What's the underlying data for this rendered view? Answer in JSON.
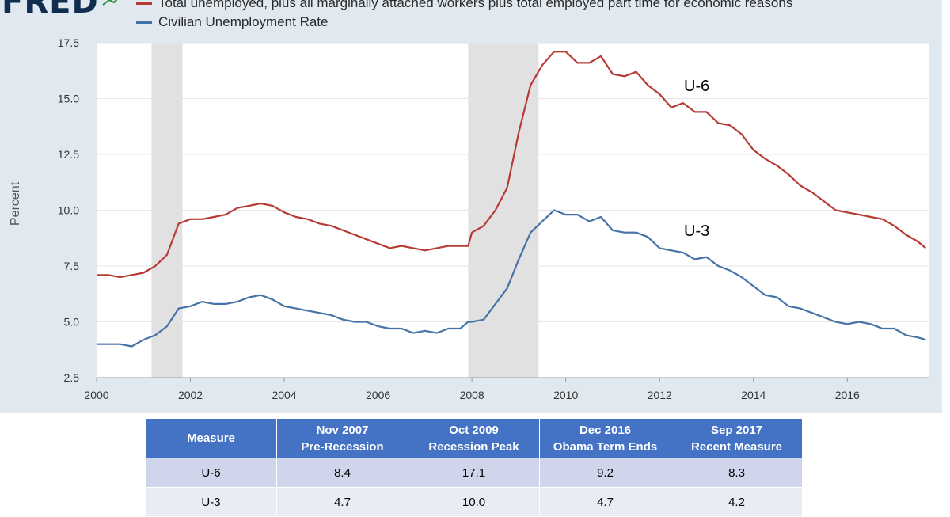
{
  "header": {
    "logo_text": "FRED",
    "series_title_partial": "Total unemployed, plus all marginally attached workers plus total employed part time for economic reasons"
  },
  "chart_data": {
    "type": "line",
    "title": "",
    "xlabel": "",
    "ylabel": "Percent",
    "xlim": [
      2000,
      2017.75
    ],
    "ylim": [
      2.5,
      17.5
    ],
    "y_ticks": [
      "2.5",
      "5.0",
      "7.5",
      "10.0",
      "12.5",
      "15.0",
      "17.5"
    ],
    "x_ticks": [
      "2000",
      "2002",
      "2004",
      "2006",
      "2008",
      "2010",
      "2012",
      "2014",
      "2016"
    ],
    "grid": true,
    "recessions": [
      [
        2001.17,
        2001.83
      ],
      [
        2007.92,
        2009.42
      ]
    ],
    "series": [
      {
        "name": "Total unemployed, plus all marginally attached workers plus total employed part time for economic reasons",
        "label": "U-6",
        "color": "#b73b33",
        "x": [
          2000.0,
          2000.25,
          2000.5,
          2000.75,
          2001.0,
          2001.25,
          2001.5,
          2001.75,
          2002.0,
          2002.25,
          2002.5,
          2002.75,
          2003.0,
          2003.25,
          2003.5,
          2003.75,
          2004.0,
          2004.25,
          2004.5,
          2004.75,
          2005.0,
          2005.25,
          2005.5,
          2005.75,
          2006.0,
          2006.25,
          2006.5,
          2006.75,
          2007.0,
          2007.25,
          2007.5,
          2007.75,
          2007.92,
          2008.0,
          2008.25,
          2008.5,
          2008.75,
          2009.0,
          2009.25,
          2009.5,
          2009.75,
          2010.0,
          2010.25,
          2010.5,
          2010.75,
          2011.0,
          2011.25,
          2011.5,
          2011.75,
          2012.0,
          2012.25,
          2012.5,
          2012.75,
          2013.0,
          2013.25,
          2013.5,
          2013.75,
          2014.0,
          2014.25,
          2014.5,
          2014.75,
          2015.0,
          2015.25,
          2015.5,
          2015.75,
          2016.0,
          2016.25,
          2016.5,
          2016.75,
          2017.0,
          2017.25,
          2017.5,
          2017.67
        ],
        "y": [
          7.1,
          7.1,
          7.0,
          7.1,
          7.2,
          7.5,
          8.0,
          9.4,
          9.6,
          9.6,
          9.7,
          9.8,
          10.1,
          10.2,
          10.3,
          10.2,
          9.9,
          9.7,
          9.6,
          9.4,
          9.3,
          9.1,
          8.9,
          8.7,
          8.5,
          8.3,
          8.4,
          8.3,
          8.2,
          8.3,
          8.4,
          8.4,
          8.4,
          9.0,
          9.3,
          10.0,
          11.0,
          13.5,
          15.6,
          16.5,
          17.1,
          17.1,
          16.6,
          16.6,
          16.9,
          16.1,
          16.0,
          16.2,
          15.6,
          15.2,
          14.6,
          14.8,
          14.4,
          14.4,
          13.9,
          13.8,
          13.4,
          12.7,
          12.3,
          12.0,
          11.6,
          11.1,
          10.8,
          10.4,
          10.0,
          9.9,
          9.8,
          9.7,
          9.6,
          9.3,
          8.9,
          8.6,
          8.3
        ]
      },
      {
        "name": "Civilian Unemployment Rate",
        "label": "U-3",
        "color": "#4572a7",
        "x": [
          2000.0,
          2000.25,
          2000.5,
          2000.75,
          2001.0,
          2001.25,
          2001.5,
          2001.75,
          2002.0,
          2002.25,
          2002.5,
          2002.75,
          2003.0,
          2003.25,
          2003.5,
          2003.75,
          2004.0,
          2004.25,
          2004.5,
          2004.75,
          2005.0,
          2005.25,
          2005.5,
          2005.75,
          2006.0,
          2006.25,
          2006.5,
          2006.75,
          2007.0,
          2007.25,
          2007.5,
          2007.75,
          2007.92,
          2008.0,
          2008.25,
          2008.5,
          2008.75,
          2009.0,
          2009.25,
          2009.5,
          2009.75,
          2010.0,
          2010.25,
          2010.5,
          2010.75,
          2011.0,
          2011.25,
          2011.5,
          2011.75,
          2012.0,
          2012.25,
          2012.5,
          2012.75,
          2013.0,
          2013.25,
          2013.5,
          2013.75,
          2014.0,
          2014.25,
          2014.5,
          2014.75,
          2015.0,
          2015.25,
          2015.5,
          2015.75,
          2016.0,
          2016.25,
          2016.5,
          2016.75,
          2017.0,
          2017.25,
          2017.5,
          2017.67
        ],
        "y": [
          4.0,
          4.0,
          4.0,
          3.9,
          4.2,
          4.4,
          4.8,
          5.6,
          5.7,
          5.9,
          5.8,
          5.8,
          5.9,
          6.1,
          6.2,
          6.0,
          5.7,
          5.6,
          5.5,
          5.4,
          5.3,
          5.1,
          5.0,
          5.0,
          4.8,
          4.7,
          4.7,
          4.5,
          4.6,
          4.5,
          4.7,
          4.7,
          5.0,
          5.0,
          5.1,
          5.8,
          6.5,
          7.8,
          9.0,
          9.5,
          10.0,
          9.8,
          9.8,
          9.5,
          9.7,
          9.1,
          9.0,
          9.0,
          8.8,
          8.3,
          8.2,
          8.1,
          7.8,
          7.9,
          7.5,
          7.3,
          7.0,
          6.6,
          6.2,
          6.1,
          5.7,
          5.6,
          5.4,
          5.2,
          5.0,
          4.9,
          5.0,
          4.9,
          4.7,
          4.7,
          4.4,
          4.3,
          4.2
        ]
      }
    ],
    "annotations": [
      "U-6",
      "U-3"
    ]
  },
  "legend": {
    "entries": [
      {
        "text": "Total unemployed, plus all marginally attached workers plus total employed part time for economic reasons",
        "color": "#b73b33"
      },
      {
        "text": "Civilian Unemployment Rate",
        "color": "#4572a7"
      }
    ]
  },
  "table": {
    "headers": [
      [
        "Measure"
      ],
      [
        "Nov 2007",
        "Pre-Recession"
      ],
      [
        "Oct 2009",
        "Recession Peak"
      ],
      [
        "Dec 2016",
        "Obama Term Ends"
      ],
      [
        "Sep 2017",
        "Recent Measure"
      ]
    ],
    "rows": [
      [
        "U-6",
        "8.4",
        "17.1",
        "9.2",
        "8.3"
      ],
      [
        "U-3",
        "4.7",
        "10.0",
        "4.7",
        "4.2"
      ]
    ]
  }
}
